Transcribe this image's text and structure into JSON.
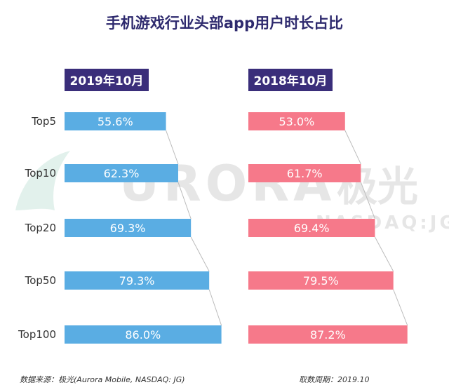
{
  "chart_data": {
    "type": "bar",
    "title": "手机游戏行业头部app用户时长占比",
    "categories": [
      "Top5",
      "Top10",
      "Top20",
      "Top50",
      "Top100"
    ],
    "series": [
      {
        "name": "2019年10月",
        "values": [
          55.6,
          62.3,
          69.3,
          79.3,
          86.0
        ],
        "labels": [
          "55.6%",
          "62.3%",
          "69.3%",
          "79.3%",
          "86.0%"
        ]
      },
      {
        "name": "2018年10月",
        "values": [
          53.0,
          61.7,
          69.4,
          79.5,
          87.2
        ],
        "labels": [
          "53.0%",
          "61.7%",
          "69.4%",
          "79.5%",
          "87.2%"
        ]
      }
    ],
    "ylabel": "",
    "xlabel": "",
    "xlim": [
      0,
      100
    ],
    "orientation": "horizontal",
    "grid": false
  },
  "colors": {
    "title": "#2e2a6e",
    "header_bg": "#3a2e7a",
    "header_text": "#ffffff",
    "series_2019": "#5aade3",
    "series_2018": "#f6798a",
    "bar_text": "#ffffff",
    "category_text": "#333333",
    "footer_text": "#333333",
    "connector": "#bbbbbb",
    "watermark": "#e0e0e0"
  },
  "watermark": {
    "brand": "URORA",
    "brand_cn": "极光",
    "sub": "NASDAQ:JG"
  },
  "footer": {
    "source": "数据来源：极光(Aurora Mobile, NASDAQ: JG)",
    "period": "取数周期：2019.10"
  }
}
